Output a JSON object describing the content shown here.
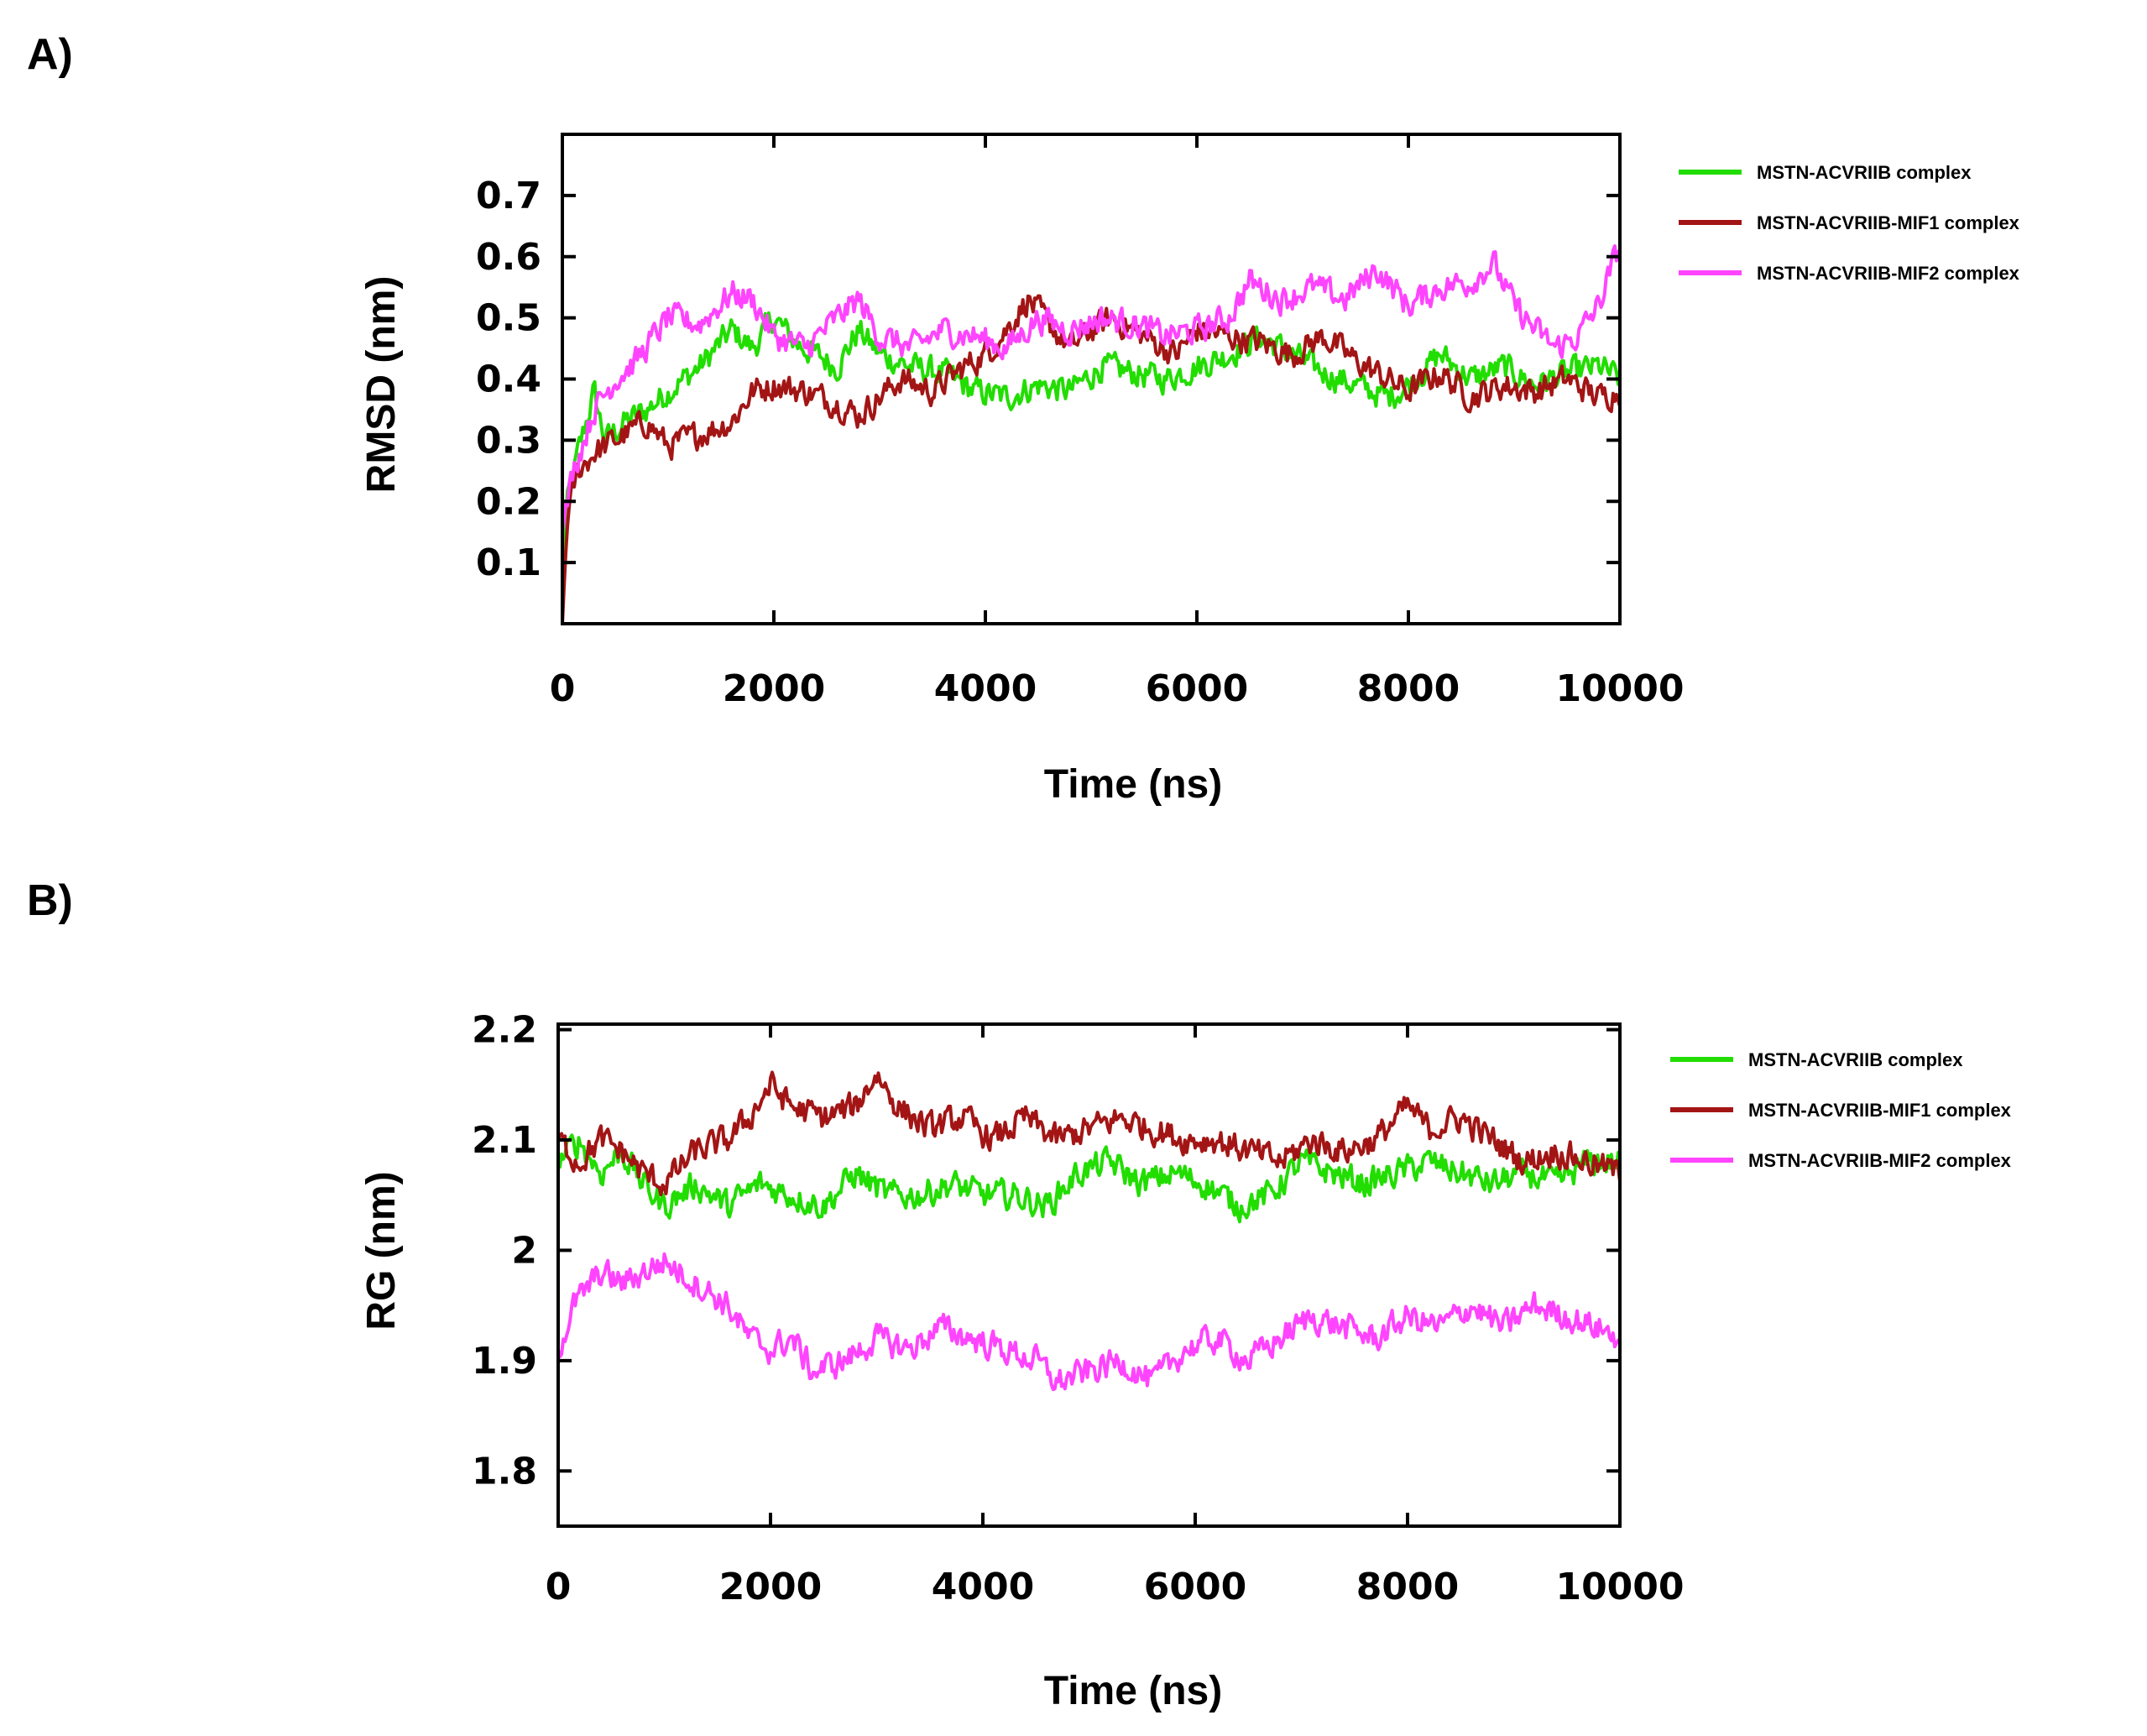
{
  "chart_data": [
    {
      "panel": "A)",
      "type": "line",
      "xlabel": "Time (ns)",
      "ylabel": "RMSD (nm)",
      "xlim": [
        0,
        10000
      ],
      "ylim": [
        0,
        0.8
      ],
      "xticks": [
        0,
        2000,
        4000,
        6000,
        8000,
        10000
      ],
      "yticks": [
        0.1,
        0.2,
        0.3,
        0.4,
        0.5,
        0.6,
        0.7
      ],
      "xtick_labels": [
        "0",
        "2000",
        "4000",
        "6000",
        "8000",
        "10000"
      ],
      "ytick_labels": [
        "0.1",
        "0.2",
        "0.3",
        "0.4",
        "0.5",
        "0.6",
        "0.7"
      ],
      "legend_position": "right",
      "series": [
        {
          "name": "MSTN-ACVRIIB complex",
          "color": "#22dd00",
          "x": [
            0,
            50,
            150,
            300,
            400,
            600,
            800,
            1000,
            1300,
            1600,
            1800,
            2000,
            2200,
            2400,
            2600,
            2800,
            3000,
            3300,
            3600,
            3900,
            4200,
            4500,
            4800,
            5100,
            5400,
            5700,
            6000,
            6300,
            6600,
            6900,
            7200,
            7500,
            7800,
            8000,
            8300,
            8600,
            8900,
            9200,
            9500,
            9800,
            10000
          ],
          "y": [
            0.1,
            0.2,
            0.28,
            0.38,
            0.3,
            0.33,
            0.35,
            0.38,
            0.42,
            0.48,
            0.45,
            0.5,
            0.46,
            0.44,
            0.42,
            0.48,
            0.44,
            0.42,
            0.41,
            0.38,
            0.37,
            0.39,
            0.38,
            0.42,
            0.41,
            0.4,
            0.42,
            0.44,
            0.47,
            0.44,
            0.41,
            0.39,
            0.37,
            0.39,
            0.44,
            0.4,
            0.42,
            0.39,
            0.41,
            0.42,
            0.4
          ]
        },
        {
          "name": "MSTN-ACVRIIB-MIF1 complex",
          "color": "#a31515",
          "x": [
            0,
            50,
            150,
            300,
            500,
            800,
            1000,
            1300,
            1600,
            1800,
            2000,
            2300,
            2600,
            2800,
            3000,
            3200,
            3500,
            3800,
            4000,
            4200,
            4400,
            4600,
            4800,
            5000,
            5200,
            5500,
            5800,
            6000,
            6300,
            6600,
            6900,
            7200,
            7500,
            7800,
            8000,
            8300,
            8600,
            8900,
            9200,
            9500,
            9800,
            10000
          ],
          "y": [
            0.0,
            0.18,
            0.25,
            0.28,
            0.3,
            0.33,
            0.29,
            0.31,
            0.33,
            0.38,
            0.39,
            0.38,
            0.36,
            0.34,
            0.37,
            0.4,
            0.38,
            0.42,
            0.44,
            0.48,
            0.53,
            0.49,
            0.45,
            0.48,
            0.5,
            0.47,
            0.44,
            0.48,
            0.47,
            0.46,
            0.44,
            0.47,
            0.43,
            0.4,
            0.38,
            0.41,
            0.37,
            0.39,
            0.38,
            0.4,
            0.37,
            0.38
          ]
        },
        {
          "name": "MSTN-ACVRIIB-MIF2 complex",
          "color": "#ff44ff",
          "x": [
            0,
            100,
            300,
            500,
            700,
            1000,
            1300,
            1600,
            1800,
            2000,
            2300,
            2600,
            2800,
            3000,
            3300,
            3600,
            3900,
            4200,
            4500,
            4800,
            5100,
            5400,
            5700,
            6000,
            6300,
            6500,
            6800,
            7100,
            7400,
            7700,
            8000,
            8300,
            8600,
            8800,
            9000,
            9200,
            9400,
            9600,
            9800,
            10000
          ],
          "y": [
            0.15,
            0.25,
            0.35,
            0.4,
            0.43,
            0.5,
            0.49,
            0.54,
            0.53,
            0.47,
            0.45,
            0.5,
            0.53,
            0.47,
            0.45,
            0.48,
            0.47,
            0.45,
            0.5,
            0.48,
            0.5,
            0.49,
            0.47,
            0.48,
            0.5,
            0.56,
            0.53,
            0.55,
            0.53,
            0.58,
            0.52,
            0.55,
            0.56,
            0.59,
            0.52,
            0.48,
            0.45,
            0.47,
            0.52,
            0.62
          ]
        }
      ]
    },
    {
      "panel": "B)",
      "type": "line",
      "xlabel": "Time (ns)",
      "ylabel": "RG (nm)",
      "xlim": [
        0,
        10000
      ],
      "ylim": [
        1.75,
        2.205
      ],
      "xticks": [
        0,
        2000,
        4000,
        6000,
        8000,
        10000
      ],
      "yticks": [
        1.8,
        1.9,
        2.0,
        2.1,
        2.2
      ],
      "xtick_labels": [
        "0",
        "2000",
        "4000",
        "6000",
        "8000",
        "10000"
      ],
      "ytick_labels": [
        "1.8",
        "1.9",
        "2",
        "2.1",
        "2.2"
      ],
      "legend_position": "right",
      "series": [
        {
          "name": "MSTN-ACVRIIB complex",
          "color": "#22dd00",
          "x": [
            0,
            200,
            400,
            600,
            800,
            1000,
            1300,
            1600,
            1900,
            2200,
            2500,
            2800,
            3100,
            3400,
            3700,
            4000,
            4300,
            4600,
            4900,
            5200,
            5500,
            5800,
            6100,
            6400,
            6700,
            7000,
            7300,
            7600,
            7900,
            8200,
            8500,
            8800,
            9100,
            9400,
            9700,
            10000
          ],
          "y": [
            2.08,
            2.1,
            2.07,
            2.09,
            2.06,
            2.04,
            2.06,
            2.04,
            2.06,
            2.05,
            2.04,
            2.07,
            2.05,
            2.05,
            2.06,
            2.05,
            2.05,
            2.04,
            2.07,
            2.08,
            2.06,
            2.07,
            2.06,
            2.04,
            2.05,
            2.08,
            2.07,
            2.06,
            2.07,
            2.08,
            2.07,
            2.06,
            2.07,
            2.06,
            2.08,
            2.08
          ]
        },
        {
          "name": "MSTN-ACVRIIB-MIF1 complex",
          "color": "#a31515",
          "x": [
            0,
            200,
            400,
            600,
            800,
            1000,
            1300,
            1600,
            1800,
            2000,
            2200,
            2500,
            2800,
            3000,
            3200,
            3500,
            3800,
            4100,
            4400,
            4700,
            5000,
            5300,
            5600,
            5900,
            6200,
            6500,
            6800,
            7100,
            7400,
            7700,
            8000,
            8200,
            8500,
            8800,
            9100,
            9400,
            9700,
            10000
          ],
          "y": [
            2.1,
            2.08,
            2.1,
            2.09,
            2.07,
            2.06,
            2.09,
            2.1,
            2.12,
            2.15,
            2.13,
            2.12,
            2.13,
            2.16,
            2.13,
            2.11,
            2.12,
            2.1,
            2.12,
            2.1,
            2.11,
            2.12,
            2.11,
            2.1,
            2.1,
            2.09,
            2.08,
            2.1,
            2.09,
            2.1,
            2.13,
            2.11,
            2.12,
            2.1,
            2.08,
            2.09,
            2.08,
            2.07
          ]
        },
        {
          "name": "MSTN-ACVRIIB-MIF2 complex",
          "color": "#ff44ff",
          "x": [
            0,
            150,
            400,
            600,
            800,
            1000,
            1300,
            1600,
            1800,
            2000,
            2200,
            2400,
            2700,
            3000,
            3300,
            3600,
            3900,
            4200,
            4500,
            4700,
            5000,
            5300,
            5600,
            5900,
            6200,
            6500,
            6800,
            7100,
            7400,
            7700,
            8000,
            8300,
            8600,
            8900,
            9200,
            9500,
            9800,
            10000
          ],
          "y": [
            1.91,
            1.95,
            1.98,
            1.97,
            1.98,
            1.99,
            1.97,
            1.95,
            1.92,
            1.91,
            1.92,
            1.89,
            1.9,
            1.92,
            1.91,
            1.93,
            1.92,
            1.91,
            1.9,
            1.88,
            1.89,
            1.9,
            1.88,
            1.91,
            1.92,
            1.9,
            1.92,
            1.94,
            1.93,
            1.92,
            1.94,
            1.93,
            1.95,
            1.93,
            1.95,
            1.94,
            1.93,
            1.92
          ]
        }
      ]
    }
  ]
}
